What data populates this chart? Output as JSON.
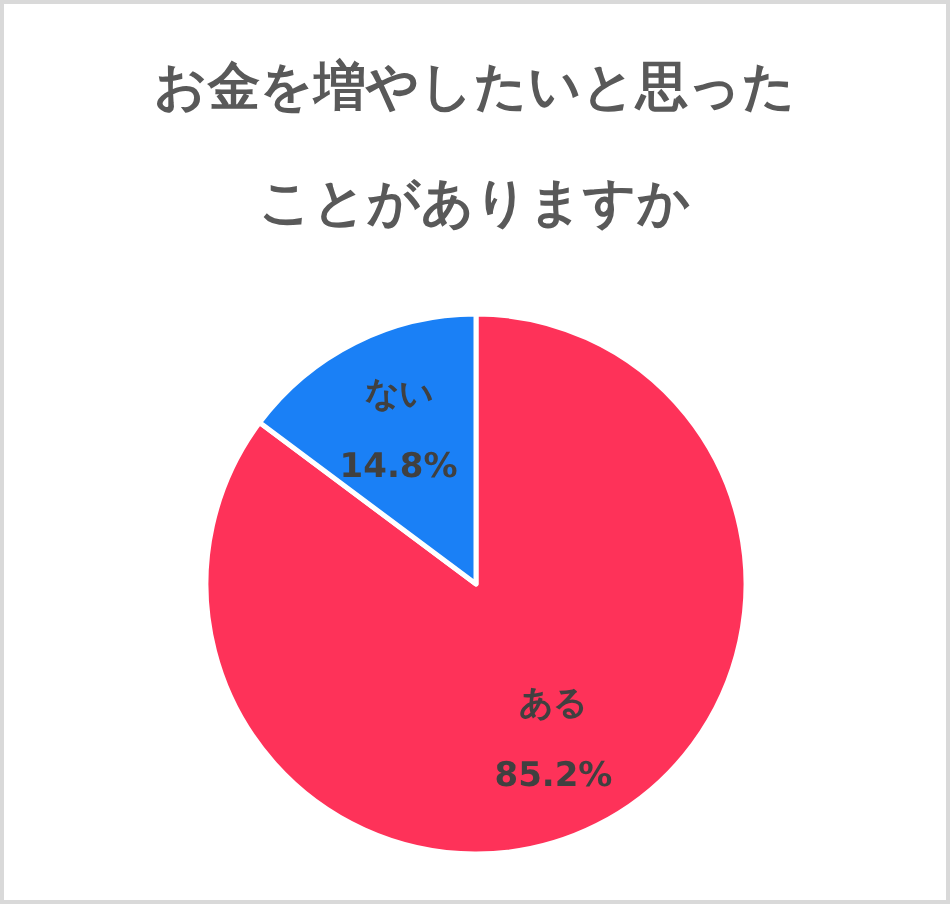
{
  "chart_data": {
    "type": "pie",
    "title": "お金を増やしたいと思ったことがありますか",
    "categories": [
      "ある",
      "ない"
    ],
    "values": [
      85.2,
      14.8
    ],
    "colors": [
      "#fe3259",
      "#1a80f6"
    ],
    "value_labels": [
      "85.2%",
      "14.8%"
    ],
    "legend": false
  }
}
